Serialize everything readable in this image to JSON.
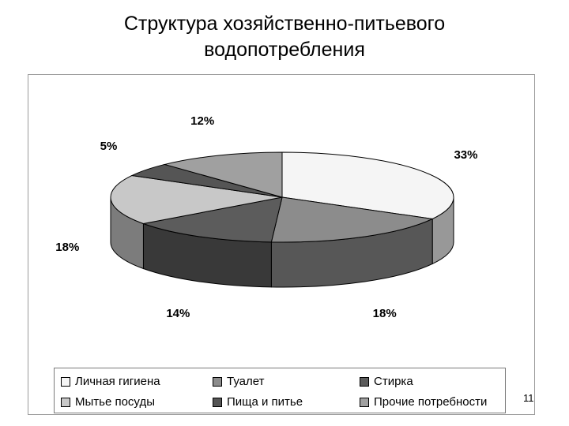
{
  "title_line1": "Структура хозяйственно-питьевого",
  "title_line2": "водопотребления",
  "page_number": "11",
  "chart_data": {
    "type": "pie",
    "subtype": "3d-pie",
    "legend_position": "bottom",
    "slices": [
      {
        "name": "Личная гигиена",
        "value": 33,
        "label": "33%",
        "color": "#f5f5f5"
      },
      {
        "name": "Туалет",
        "value": 18,
        "label": "18%",
        "color": "#8c8c8c"
      },
      {
        "name": "Стирка",
        "value": 14,
        "label": "14%",
        "color": "#5c5c5c"
      },
      {
        "name": "Мытье посуды",
        "value": 18,
        "label": "18%",
        "color": "#c8c8c8"
      },
      {
        "name": "Пища и питье",
        "value": 5,
        "label": "5%",
        "color": "#555555"
      },
      {
        "name": "Прочие потребности",
        "value": 12,
        "label": "12%",
        "color": "#a0a0a0"
      }
    ]
  }
}
